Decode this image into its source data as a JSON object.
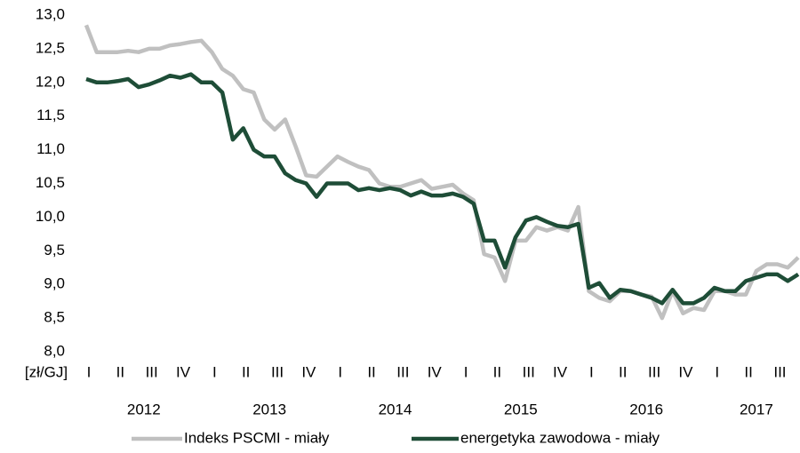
{
  "chart_data": {
    "type": "line",
    "y_label": "[zł/GJ]",
    "categories": [
      "I",
      null,
      null,
      "II",
      null,
      null,
      "III",
      null,
      null,
      "IV",
      null,
      null,
      "I",
      null,
      null,
      "II",
      null,
      null,
      "III",
      null,
      null,
      "IV",
      null,
      null,
      "I",
      null,
      null,
      "II",
      null,
      null,
      "III",
      null,
      null,
      "IV",
      null,
      null,
      "I",
      null,
      null,
      "II",
      null,
      null,
      "III",
      null,
      null,
      "IV",
      null,
      null,
      "I",
      null,
      null,
      "II",
      null,
      null,
      "III",
      null,
      null,
      "IV",
      null,
      null,
      "I",
      null,
      null,
      "II",
      null,
      null,
      "III",
      null,
      null
    ],
    "year_groups": [
      "2012",
      "2013",
      "2014",
      "2015",
      "2016",
      "2017"
    ],
    "series": [
      {
        "name": "Indeks PSCMI - miały",
        "color": "#c0c0c0",
        "values": [
          12.85,
          12.45,
          12.45,
          12.45,
          12.47,
          12.45,
          12.5,
          12.5,
          12.55,
          12.57,
          12.6,
          12.62,
          12.45,
          12.2,
          12.1,
          11.9,
          11.85,
          11.45,
          11.3,
          11.45,
          11.05,
          10.62,
          10.6,
          10.75,
          10.9,
          10.82,
          10.75,
          10.7,
          10.5,
          10.45,
          10.45,
          10.5,
          10.55,
          10.42,
          10.45,
          10.48,
          10.35,
          10.25,
          9.45,
          9.4,
          9.05,
          9.65,
          9.65,
          9.85,
          9.8,
          9.85,
          9.8,
          10.15,
          8.9,
          8.8,
          8.75,
          8.9,
          8.9,
          8.85,
          8.82,
          8.5,
          8.9,
          8.57,
          8.65,
          8.62,
          8.9,
          8.9,
          8.85,
          8.85,
          9.2,
          9.3,
          9.3,
          9.25,
          9.4
        ]
      },
      {
        "name": "energetyka zawodowa - miały",
        "color": "#1e4d37",
        "values": [
          12.05,
          12.0,
          12.0,
          12.02,
          12.05,
          11.93,
          11.97,
          12.03,
          12.1,
          12.07,
          12.12,
          12.0,
          12.0,
          11.85,
          11.15,
          11.32,
          11.0,
          10.9,
          10.9,
          10.65,
          10.55,
          10.5,
          10.3,
          10.5,
          10.5,
          10.5,
          10.4,
          10.43,
          10.4,
          10.43,
          10.4,
          10.32,
          10.38,
          10.32,
          10.32,
          10.35,
          10.3,
          10.2,
          9.65,
          9.65,
          9.25,
          9.7,
          9.95,
          10.0,
          9.93,
          9.87,
          9.85,
          9.9,
          8.95,
          9.02,
          8.8,
          8.92,
          8.9,
          8.85,
          8.8,
          8.72,
          8.92,
          8.72,
          8.72,
          8.8,
          8.95,
          8.9,
          8.9,
          9.05,
          9.1,
          9.15,
          9.15,
          9.05,
          9.15
        ]
      }
    ],
    "ylim": [
      8,
      13
    ],
    "yticks": [
      {
        "value": 8,
        "label": "8,0"
      },
      {
        "value": 8.5,
        "label": "8,5"
      },
      {
        "value": 9,
        "label": "9,0"
      },
      {
        "value": 9.5,
        "label": "9,5"
      },
      {
        "value": 10,
        "label": "10,0"
      },
      {
        "value": 10.5,
        "label": "10,5"
      },
      {
        "value": 11,
        "label": "11,0"
      },
      {
        "value": 11.5,
        "label": "11,5"
      },
      {
        "value": 12,
        "label": "12,0"
      },
      {
        "value": 12.5,
        "label": "12,5"
      },
      {
        "value": 13,
        "label": "13,0"
      }
    ],
    "grid": false,
    "legend": "bottom"
  }
}
